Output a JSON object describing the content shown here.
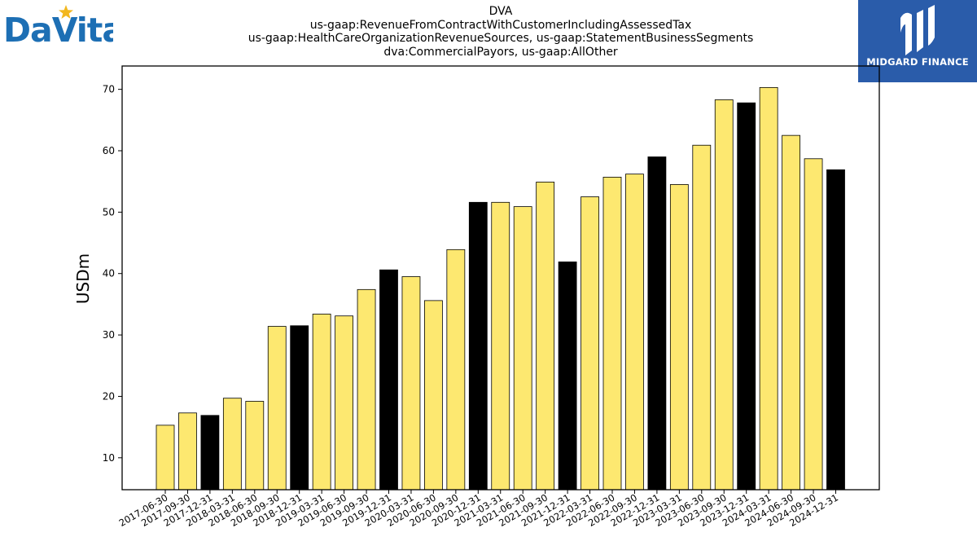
{
  "brand": {
    "logo_text": "DaVita",
    "accent": "#1d6fb4",
    "star_color": "#f2b71f"
  },
  "partner": {
    "name": "MIDGARD FINANCE",
    "bg_color": "#2a5caa"
  },
  "chart_data": {
    "type": "bar",
    "title_lines": [
      "DVA",
      "us-gaap:RevenueFromContractWithCustomerIncludingAssessedTax",
      "us-gaap:HealthCareOrganizationRevenueSources, us-gaap:StatementBusinessSegments",
      "dva:CommercialPayors, us-gaap:AllOther"
    ],
    "ylabel": "USDm",
    "xlabel": "",
    "ylim": [
      4.8,
      73.8
    ],
    "yticks": [
      10,
      20,
      30,
      40,
      50,
      60,
      70
    ],
    "grid": false,
    "colors": {
      "quarter": "#fde870",
      "year_end": "#000000",
      "edge": "#000000"
    },
    "categories": [
      "2017-06-30",
      "2017-09-30",
      "2017-12-31",
      "2018-03-31",
      "2018-06-30",
      "2018-09-30",
      "2018-12-31",
      "2019-03-31",
      "2019-06-30",
      "2019-09-30",
      "2019-12-31",
      "2020-03-31",
      "2020-06-30",
      "2020-09-30",
      "2020-12-31",
      "2021-03-31",
      "2021-06-30",
      "2021-09-30",
      "2021-12-31",
      "2022-03-31",
      "2022-06-30",
      "2022-09-30",
      "2022-12-31",
      "2023-03-31",
      "2023-06-30",
      "2023-09-30",
      "2023-12-31",
      "2024-03-31",
      "2024-06-30",
      "2024-09-30",
      "2024-12-31"
    ],
    "values": [
      15.3,
      17.3,
      16.9,
      19.7,
      19.2,
      31.4,
      31.5,
      33.4,
      33.1,
      37.4,
      40.6,
      39.5,
      35.6,
      43.9,
      51.6,
      51.6,
      50.9,
      54.9,
      41.9,
      52.5,
      55.7,
      56.2,
      59.0,
      54.5,
      60.9,
      68.3,
      67.8,
      70.3,
      62.5,
      58.7,
      56.9
    ]
  }
}
